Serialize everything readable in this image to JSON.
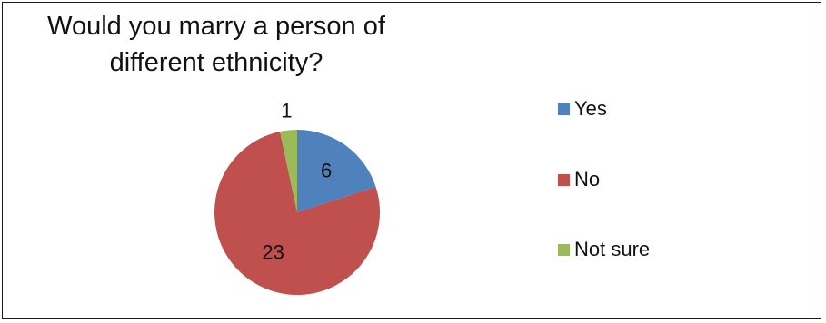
{
  "chart_data": {
    "type": "pie",
    "title": "Would you marry a person of different ethnicity?",
    "title_lines": [
      "Would you marry a person of",
      "different ethnicity?"
    ],
    "categories": [
      "Yes",
      "No",
      "Not sure"
    ],
    "values": [
      6,
      23,
      1
    ],
    "colors": [
      "#4F81BD",
      "#C0504D",
      "#9BBB59"
    ],
    "data_labels": [
      "6",
      "23",
      "1"
    ],
    "legend_position": "right"
  }
}
